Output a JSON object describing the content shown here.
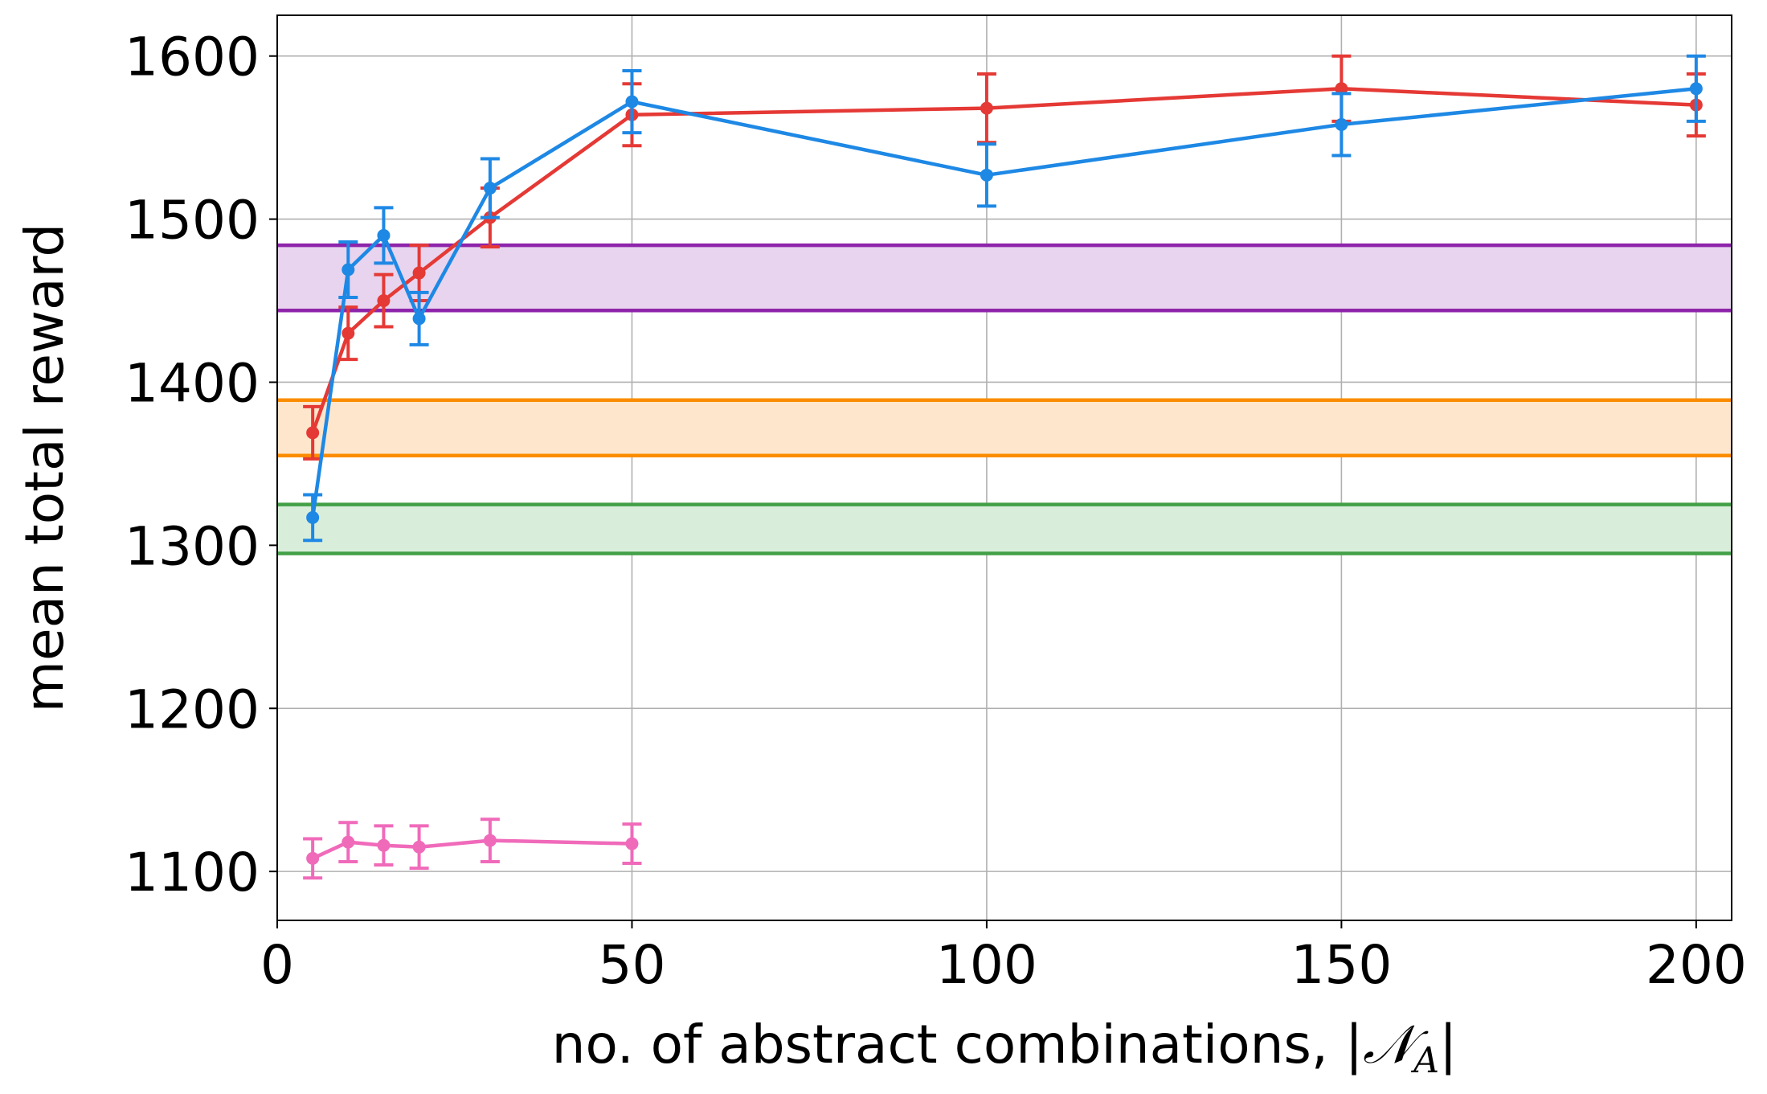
{
  "chart_data": {
    "type": "line",
    "title": "",
    "xlabel": "no. of abstract combinations, |",
    "xlabel_symbol": "𝒩",
    "xlabel_subscript": "A",
    "xlabel_end": "|",
    "ylabel": "mean total reward",
    "xlim": [
      0,
      205
    ],
    "ylim": [
      1070,
      1625
    ],
    "xticks": [
      0,
      50,
      100,
      150,
      200
    ],
    "xtick_labels": [
      "0",
      "50",
      "100",
      "150",
      "200"
    ],
    "yticks": [
      1100,
      1200,
      1300,
      1400,
      1500,
      1600
    ],
    "ytick_labels": [
      "1100",
      "1200",
      "1300",
      "1400",
      "1500",
      "1600"
    ],
    "grid": true,
    "legend": "none",
    "bands": [
      {
        "name": "purple-band",
        "lower": 1444,
        "upper": 1484,
        "color": "#8e24aa",
        "fill": "#e8d4ee"
      },
      {
        "name": "orange-band",
        "lower": 1355,
        "upper": 1389,
        "color": "#fb8c00",
        "fill": "#fde6cc"
      },
      {
        "name": "green-band",
        "lower": 1295,
        "upper": 1325,
        "color": "#43a047",
        "fill": "#d9eeda"
      }
    ],
    "series": [
      {
        "name": "red",
        "color": "#e53935",
        "x": [
          5,
          10,
          15,
          20,
          30,
          50,
          100,
          150,
          200
        ],
        "values": [
          1369,
          1430,
          1450,
          1467,
          1501,
          1564,
          1568,
          1580,
          1570
        ],
        "err": [
          16,
          16,
          16,
          17,
          18,
          19,
          21,
          20,
          19
        ]
      },
      {
        "name": "blue",
        "color": "#1e88e5",
        "x": [
          5,
          10,
          15,
          20,
          30,
          50,
          100,
          150,
          200
        ],
        "values": [
          1317,
          1469,
          1490,
          1439,
          1519,
          1572,
          1527,
          1558,
          1580
        ],
        "err": [
          14,
          17,
          17,
          16,
          18,
          19,
          19,
          19,
          20
        ]
      },
      {
        "name": "pink",
        "color": "#f06aba",
        "x": [
          5,
          10,
          15,
          20,
          30,
          50
        ],
        "values": [
          1108,
          1118,
          1116,
          1115,
          1119,
          1117
        ],
        "err": [
          12,
          12,
          12,
          13,
          13,
          12
        ]
      }
    ]
  }
}
